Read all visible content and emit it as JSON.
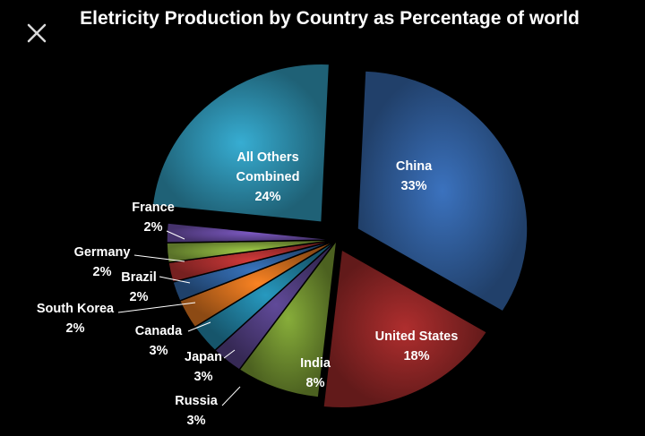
{
  "chart_data": {
    "type": "pie",
    "title": "Eletricity Production by Country as Percentage of world",
    "slices": [
      {
        "label": "China",
        "value": 33,
        "display": "33%",
        "color": "#2f5b98"
      },
      {
        "label": "United States",
        "value": 18,
        "display": "18%",
        "color": "#8c2525"
      },
      {
        "label": "India",
        "value": 8,
        "display": "8%",
        "color": "#6c8a2e"
      },
      {
        "label": "Russia",
        "value": 3,
        "display": "3%",
        "color": "#4d3b7a"
      },
      {
        "label": "Japan",
        "value": 3,
        "display": "3%",
        "color": "#1f7a99"
      },
      {
        "label": "Canada",
        "value": 3,
        "display": "3%",
        "color": "#c8691c"
      },
      {
        "label": "South Korea",
        "value": 2,
        "display": "2%",
        "color": "#2d5d98"
      },
      {
        "label": "Brazil",
        "value": 2,
        "display": "2%",
        "color": "#a82e2e"
      },
      {
        "label": "Germany",
        "value": 2,
        "display": "2%",
        "color": "#80a33a"
      },
      {
        "label": "France",
        "value": 2,
        "display": "2%",
        "color": "#63479a"
      },
      {
        "label": "All Others Combined",
        "value": 24,
        "display": "24%",
        "color": "#2c8aa8"
      }
    ]
  },
  "ui": {
    "close_icon": "close-icon"
  }
}
